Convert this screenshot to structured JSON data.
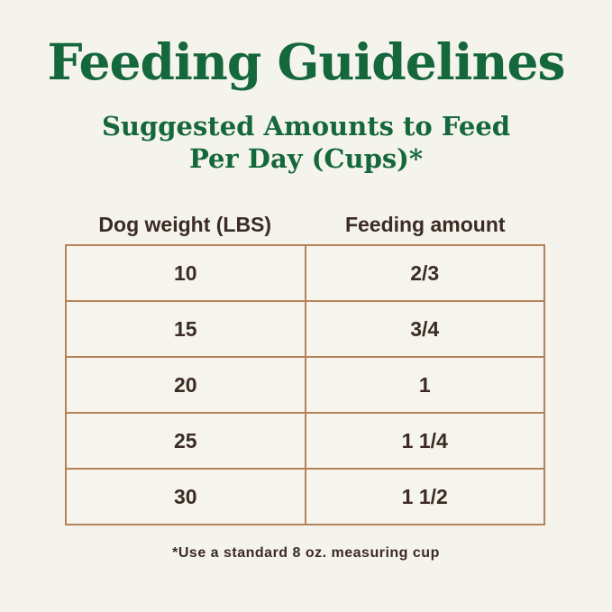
{
  "page": {
    "background_color": "#F4F3EC"
  },
  "colors": {
    "heading_green": "#15673C",
    "text_brown": "#3B2B24",
    "table_border_tan": "#B6825A"
  },
  "header": {
    "title": "Feeding Guidelines",
    "subtitle_line1": "Suggested Amounts to Feed",
    "subtitle_line2": "Per Day (Cups)*"
  },
  "table": {
    "columns": [
      "Dog weight (LBS)",
      "Feeding amount"
    ],
    "rows": [
      [
        "10",
        "2/3"
      ],
      [
        "15",
        "3/4"
      ],
      [
        "20",
        "1"
      ],
      [
        "25",
        "1 1/4"
      ],
      [
        "30",
        "1 1/2"
      ]
    ]
  },
  "footnote": "*Use a standard 8 oz. measuring cup",
  "chart_data": {
    "type": "table",
    "title": "Feeding Guidelines",
    "subtitle": "Suggested Amounts to Feed Per Day (Cups)*",
    "columns": [
      "Dog weight (LBS)",
      "Feeding amount"
    ],
    "rows": [
      {
        "dog_weight_lbs": 10,
        "feeding_amount_cups": "2/3"
      },
      {
        "dog_weight_lbs": 15,
        "feeding_amount_cups": "3/4"
      },
      {
        "dog_weight_lbs": 20,
        "feeding_amount_cups": "1"
      },
      {
        "dog_weight_lbs": 25,
        "feeding_amount_cups": "1 1/4"
      },
      {
        "dog_weight_lbs": 30,
        "feeding_amount_cups": "1 1/2"
      }
    ],
    "footnote": "*Use a standard 8 oz. measuring cup",
    "legend_position": "none",
    "grid": true
  }
}
